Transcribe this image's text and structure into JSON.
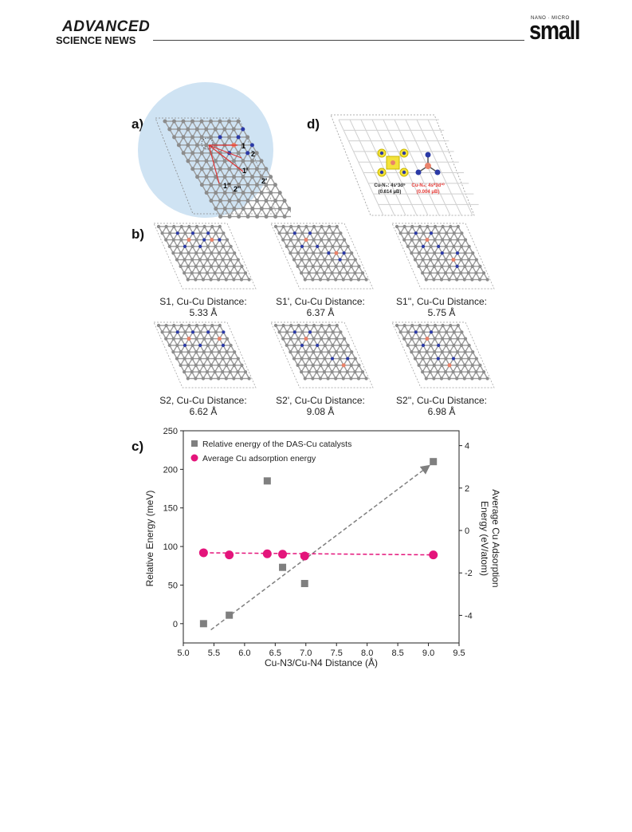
{
  "header": {
    "publisher_line1": "ADVANCED",
    "publisher_line2": "SCIENCE NEWS",
    "journal_prefix": "NANO · MICRO",
    "journal_name": "small"
  },
  "panel_a": {
    "letter": "a)",
    "site_labels": [
      "1",
      "2",
      "1'",
      "1''",
      "2''",
      "2'"
    ]
  },
  "panel_b": {
    "letter": "b)",
    "structures": [
      {
        "name": "S1, Cu-Cu Distance:",
        "distance": "5.33 Å"
      },
      {
        "name": "S1', Cu-Cu Distance:",
        "distance": "6.37 Å"
      },
      {
        "name": "S1'', Cu-Cu Distance:",
        "distance": "5.75 Å"
      },
      {
        "name": "S2, Cu-Cu Distance:",
        "distance": "6.62 Å"
      },
      {
        "name": "S2', Cu-Cu Distance:",
        "distance": "9.08 Å"
      },
      {
        "name": "S2'', Cu-Cu Distance:",
        "distance": "6.98 Å"
      }
    ]
  },
  "panel_d": {
    "letter": "d)",
    "label_cun4_line1": "Cu-N₄: 4s¹3d⁹",
    "label_cun4_line2": "(0.614 μB)",
    "label_cun3_line1": "Cu-N₃: 4s⁰3d¹⁰",
    "label_cun3_line2": "(0.004 μB)"
  },
  "panel_c": {
    "letter": "c)"
  },
  "colors": {
    "carbon": "#8c8c8c",
    "nitrogen": "#2b3aa6",
    "copper": "#e9836b",
    "highlight_circle": "#cfe3f3",
    "series_relative": "#7f7f7f",
    "series_adsorption": "#e4147b",
    "cun3_label": "#e53935"
  },
  "chart_data": {
    "type": "scatter",
    "title": "",
    "xlabel": "Cu-N3/Cu-N4 Distance (Å)",
    "ylabel": "Relative Energy (meV)",
    "y2label_line1": "Average Cu Adsorption",
    "y2label_line2": "Energy (eV/atom)",
    "xlim": [
      5.0,
      9.5
    ],
    "ylim": [
      -25,
      250
    ],
    "y2lim": [
      -5.3,
      4.7
    ],
    "xticks": [
      "5.0",
      "5.5",
      "6.0",
      "6.5",
      "7.0",
      "7.5",
      "8.0",
      "8.5",
      "9.0",
      "9.5"
    ],
    "yticks": [
      "0",
      "50",
      "100",
      "150",
      "200",
      "250"
    ],
    "y2ticks": [
      "-4",
      "-2",
      "0",
      "2",
      "4"
    ],
    "legend_placement": "top-left",
    "series": [
      {
        "name": "Relative energy of the DAS-Cu catalysts",
        "marker": "square",
        "color": "#7f7f7f",
        "axis": "left",
        "x": [
          5.33,
          5.75,
          6.37,
          6.62,
          6.98,
          9.08
        ],
        "y": [
          0,
          11,
          185,
          73,
          52,
          210
        ]
      },
      {
        "name": "Average Cu adsorption energy",
        "marker": "circle",
        "color": "#e4147b",
        "axis": "right",
        "x": [
          5.33,
          5.75,
          6.37,
          6.62,
          6.98,
          9.08
        ],
        "y": [
          -1.05,
          -1.15,
          -1.1,
          -1.12,
          -1.2,
          -1.15
        ]
      }
    ],
    "trendlines": [
      {
        "series": "Relative energy of the DAS-Cu catalysts",
        "color": "#7f7f7f",
        "style": "dashed-arrow",
        "x": [
          5.45,
          9.0
        ],
        "y": [
          -8,
          204
        ]
      },
      {
        "series": "Average Cu adsorption energy",
        "color": "#e4147b",
        "style": "dashed",
        "axis": "right",
        "x": [
          5.33,
          9.08
        ],
        "y": [
          -1.05,
          -1.15
        ]
      }
    ]
  }
}
